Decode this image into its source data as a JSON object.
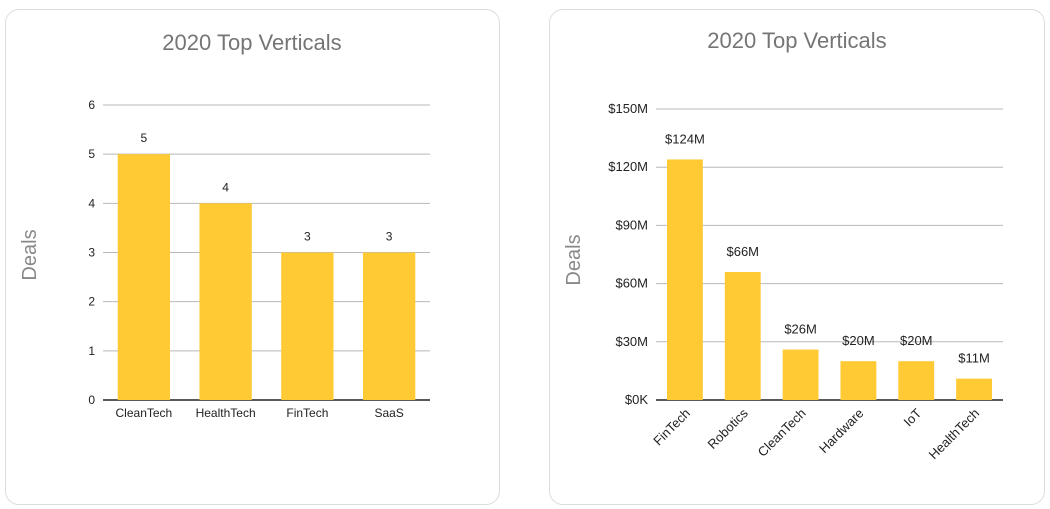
{
  "chart_data": [
    {
      "type": "bar",
      "title": "2020 Top Verticals",
      "xlabel": "",
      "ylabel": "Deals",
      "categories": [
        "CleanTech",
        "HealthTech",
        "FinTech",
        "SaaS"
      ],
      "values": [
        5,
        4,
        3,
        3
      ],
      "data_labels": [
        "5",
        "4",
        "3",
        "3"
      ],
      "ylim": [
        0,
        6
      ],
      "yticks": [
        0,
        1,
        2,
        3,
        4,
        5,
        6
      ],
      "ytick_labels": [
        "0",
        "1",
        "2",
        "3",
        "4",
        "5",
        "6"
      ],
      "grid": true,
      "bar_color": "#FFCA33"
    },
    {
      "type": "bar",
      "title": "2020 Top Verticals",
      "xlabel": "",
      "ylabel": "Deals",
      "categories": [
        "FinTech",
        "Robotics",
        "CleanTech",
        "Hardware",
        "IoT",
        "HealthTech"
      ],
      "values": [
        124,
        66,
        26,
        20,
        20,
        11
      ],
      "data_labels": [
        "$124M",
        "$66M",
        "$26M",
        "$20M",
        "$20M",
        "$11M"
      ],
      "ylim": [
        0,
        150
      ],
      "yticks": [
        0,
        30,
        60,
        90,
        120,
        150
      ],
      "ytick_labels": [
        "$0K",
        "$30M",
        "$60M",
        "$90M",
        "$120M",
        "$150M"
      ],
      "grid": true,
      "bar_color": "#FFCA33"
    }
  ]
}
